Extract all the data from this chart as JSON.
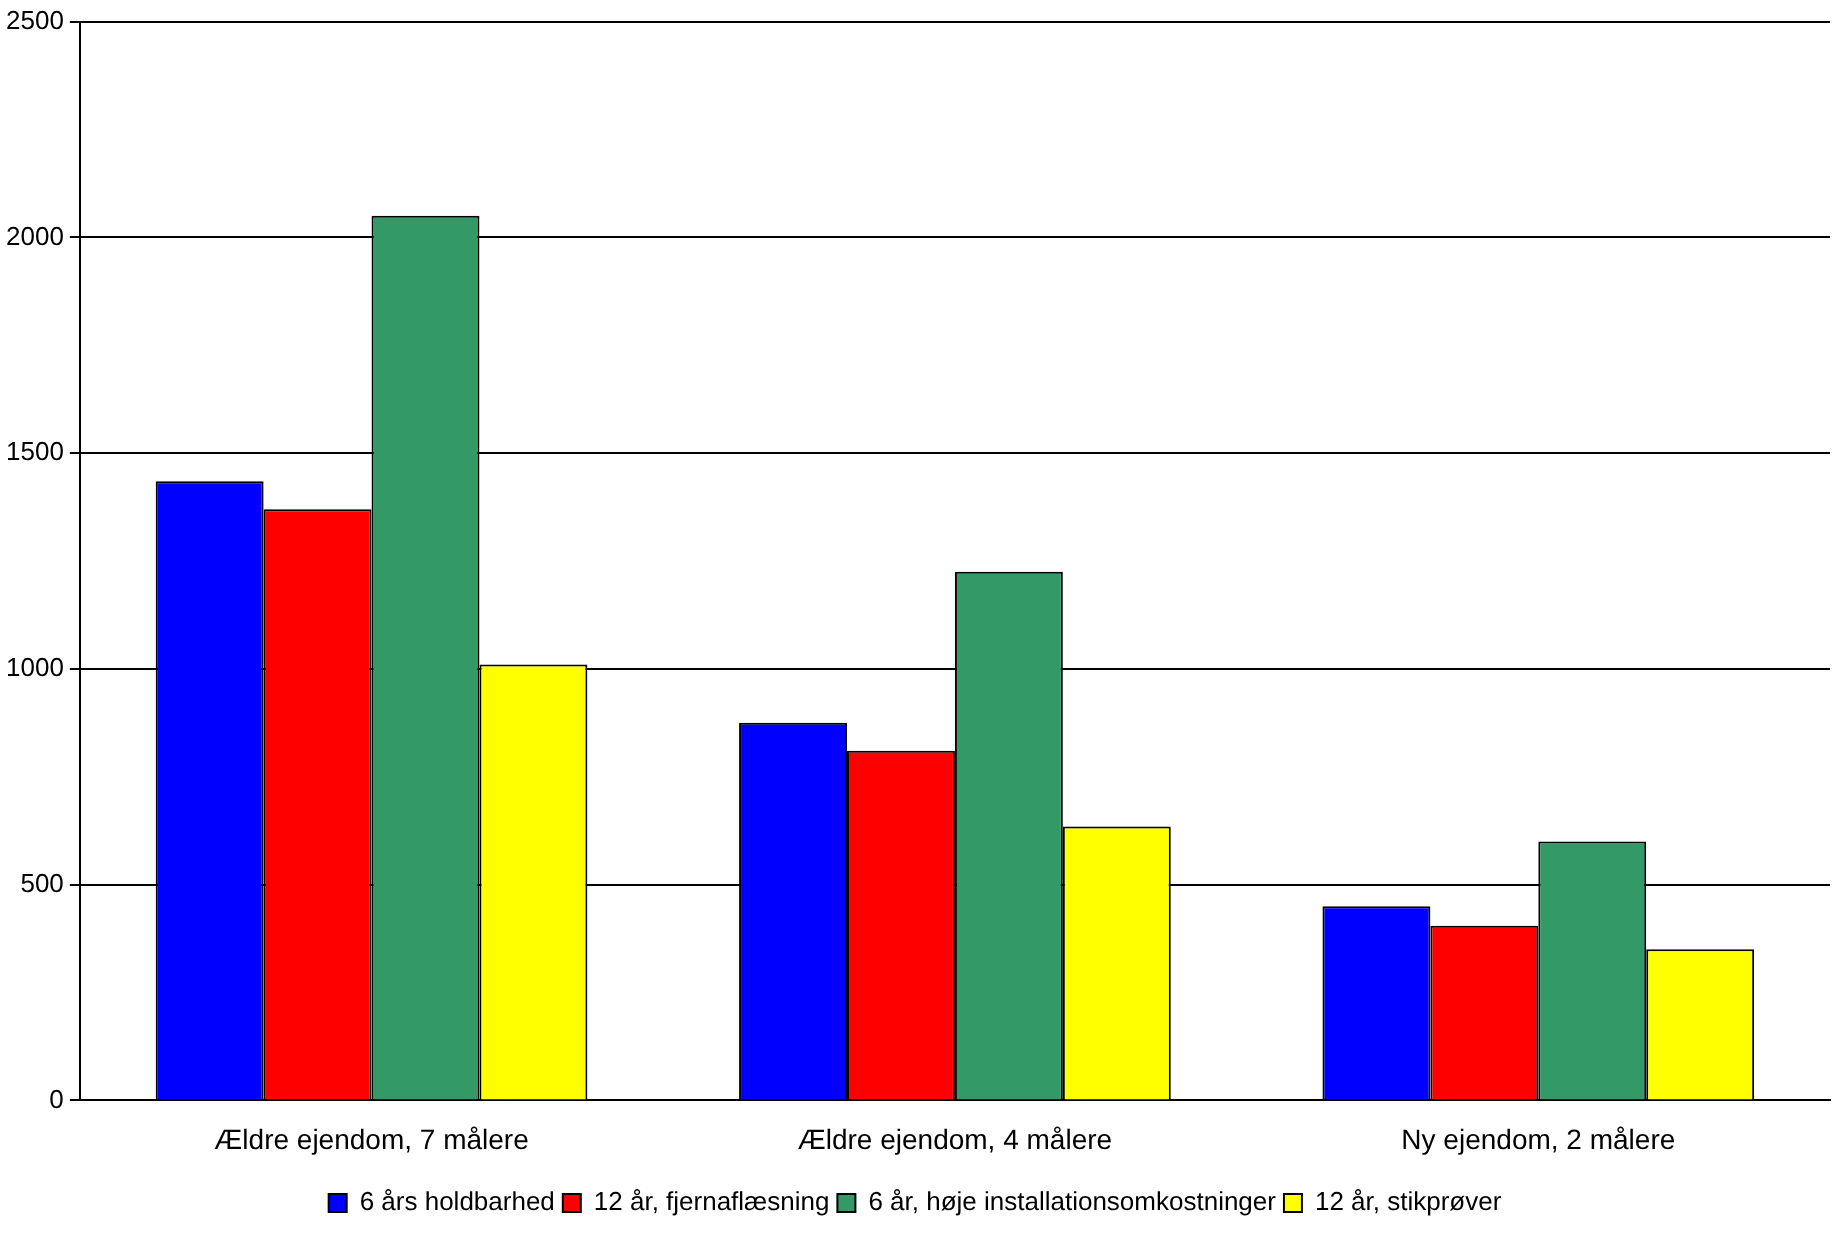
{
  "chart_data": {
    "type": "bar",
    "categories": [
      "Ældre ejendom, 7 målere",
      "Ældre ejendom, 4 målere",
      "Ny ejendom, 2 målere"
    ],
    "series": [
      {
        "name": "6 års holdbarhed",
        "color": "#0000ff",
        "values": [
          1435,
          875,
          450
        ]
      },
      {
        "name": "12 år, fjernaflæsning",
        "color": "#ff0000",
        "values": [
          1370,
          810,
          405
        ]
      },
      {
        "name": "6 år, høje installationsomkostninger",
        "color": "#339966",
        "values": [
          2050,
          1225,
          600
        ]
      },
      {
        "name": "12 år, stikprøver",
        "color": "#ffff00",
        "values": [
          1010,
          635,
          350
        ]
      }
    ],
    "ylim": [
      0,
      2500
    ],
    "yticks": [
      0,
      500,
      1000,
      1500,
      2000,
      2500
    ],
    "grid": "y",
    "legend": "bottom"
  }
}
